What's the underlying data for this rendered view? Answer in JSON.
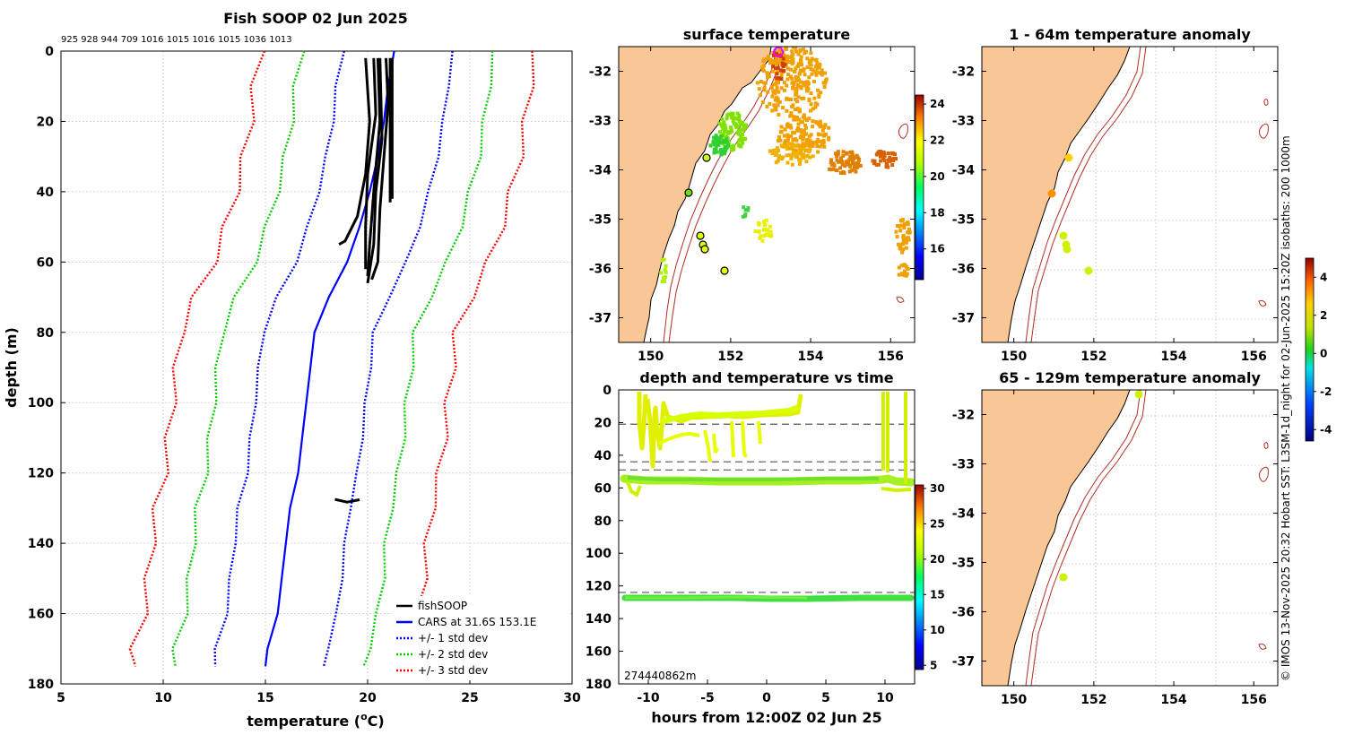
{
  "chart_data": [
    {
      "id": "profile",
      "type": "line",
      "title": "Fish SOOP 02 Jun 2025",
      "cast_labels": "925 928 944 709 1016 1015 1016 1015 1036 1013",
      "xlabel": "temperature (",
      "xlabel_sup": "o",
      "xlabel_tail": "C)",
      "ylabel": "depth (m)",
      "xlim": [
        5,
        30
      ],
      "ylim": [
        0,
        180
      ],
      "xticks": [
        5,
        10,
        15,
        20,
        25,
        30
      ],
      "yticks": [
        0,
        20,
        40,
        60,
        80,
        100,
        120,
        140,
        160,
        180
      ],
      "legend": [
        "fishSOOP",
        "CARS at 31.6S 153.1E",
        "+/- 1 std dev",
        "+/- 2 std dev",
        "+/- 3 std dev"
      ],
      "cars_depth": [
        0,
        10,
        20,
        30,
        40,
        50,
        60,
        70,
        80,
        90,
        100,
        110,
        120,
        130,
        140,
        150,
        160,
        170,
        175
      ],
      "cars_mean": [
        21.3,
        21.0,
        20.8,
        20.5,
        20.1,
        19.6,
        19.0,
        18.1,
        17.4,
        17.2,
        17.0,
        16.8,
        16.6,
        16.2,
        16.0,
        15.8,
        15.6,
        15.1,
        15.0
      ],
      "std_offsets": [
        2.5,
        4.5,
        6.5
      ],
      "fish_profiles": [
        [
          [
            19.9,
            2
          ],
          [
            20.1,
            20
          ],
          [
            19.9,
            35
          ],
          [
            19.5,
            47
          ],
          [
            18.9,
            54
          ],
          [
            18.6,
            55
          ]
        ],
        [
          [
            20.3,
            2
          ],
          [
            20.4,
            18
          ],
          [
            20.0,
            35
          ],
          [
            19.9,
            50
          ],
          [
            19.9,
            62
          ]
        ],
        [
          [
            20.6,
            2
          ],
          [
            20.7,
            25
          ],
          [
            20.4,
            40
          ],
          [
            20.3,
            55
          ],
          [
            20.0,
            66
          ]
        ],
        [
          [
            20.9,
            2
          ],
          [
            21.0,
            15
          ],
          [
            20.8,
            30
          ],
          [
            20.6,
            45
          ],
          [
            20.5,
            60
          ],
          [
            20.2,
            65
          ]
        ],
        [
          [
            21.1,
            2
          ],
          [
            21.1,
            20
          ],
          [
            21.1,
            43
          ]
        ],
        [
          [
            21.2,
            2
          ],
          [
            21.2,
            25
          ],
          [
            21.2,
            42
          ]
        ],
        [
          [
            20.5,
            2
          ],
          [
            20.6,
            20
          ],
          [
            20.3,
            40
          ],
          [
            20.1,
            55
          ],
          [
            20.0,
            64
          ]
        ],
        [
          [
            18.4,
            127.5
          ],
          [
            19.0,
            128.3
          ],
          [
            19.6,
            127.6
          ]
        ]
      ]
    },
    {
      "id": "surface",
      "type": "heatmap",
      "title": "surface temperature",
      "xticks": [
        150,
        152,
        154,
        156
      ],
      "yticks": [
        -32,
        -33,
        -34,
        -35,
        -36,
        -37
      ],
      "colorbar": [
        24,
        22,
        20,
        18,
        16
      ]
    },
    {
      "id": "anom1",
      "type": "heatmap",
      "title": "1 - 64m temperature anomaly",
      "xticks": [
        150,
        152,
        154,
        156
      ],
      "yticks": [
        -32,
        -33,
        -34,
        -35,
        -36,
        -37
      ]
    },
    {
      "id": "anom2",
      "type": "heatmap",
      "title": "65 - 129m temperature anomaly",
      "xticks": [
        150,
        152,
        154,
        156
      ],
      "yticks": [
        -32,
        -33,
        -34,
        -35,
        -36,
        -37
      ],
      "colorbar": [
        4,
        2,
        0,
        -2,
        -4
      ]
    },
    {
      "id": "timeseries",
      "type": "scatter",
      "title": "depth and temperature vs time",
      "xlabel": "hours from 12:00Z 02 Jun 25",
      "xticks": [
        -10,
        -5,
        0,
        5,
        10
      ],
      "yticks": [
        0,
        20,
        40,
        60,
        80,
        100,
        120,
        140,
        160,
        180
      ],
      "xlim": [
        -12.5,
        12.5
      ],
      "ylim": [
        0,
        180
      ],
      "dashed_depths": [
        21,
        44,
        49,
        124
      ],
      "colorbar": [
        30,
        25,
        20,
        15,
        10,
        5
      ],
      "overlap_label": "274⁠440⁠862m"
    }
  ],
  "side_note": "© IMOS 13-Nov-2025 20:32 Hobart SST: L3SM-1d_night for 02-Jun-2025 15:20Z isobaths: 200  1000m"
}
